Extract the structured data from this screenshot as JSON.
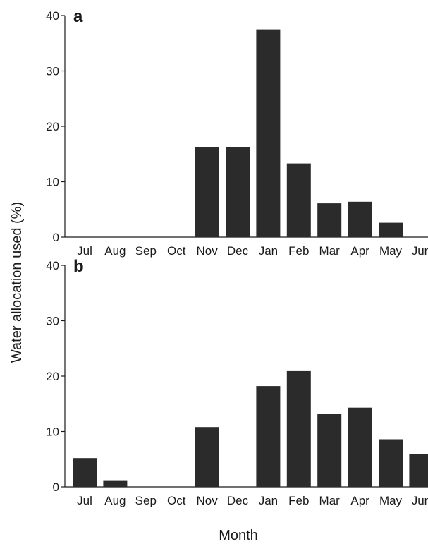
{
  "figure": {
    "ylabel": "Water allocation used (%)",
    "xlabel": "Month"
  },
  "colors": {
    "bar": "#2b2b2b",
    "axis": "#1a1a1a",
    "background": "#ffffff"
  },
  "chart_data": [
    {
      "type": "bar",
      "panel": "a",
      "categories": [
        "Jul",
        "Aug",
        "Sep",
        "Oct",
        "Nov",
        "Dec",
        "Jan",
        "Feb",
        "Mar",
        "Apr",
        "May",
        "Jun"
      ],
      "values": [
        0,
        0,
        0,
        0,
        16.3,
        16.3,
        37.5,
        13.3,
        6.1,
        6.4,
        2.6,
        0
      ],
      "yticks": [
        0,
        10,
        20,
        30,
        40
      ],
      "ylim": [
        0,
        40
      ],
      "xlabel": "",
      "ylabel": "Water allocation used (%)",
      "grid": false
    },
    {
      "type": "bar",
      "panel": "b",
      "categories": [
        "Jul",
        "Aug",
        "Sep",
        "Oct",
        "Nov",
        "Dec",
        "Jan",
        "Feb",
        "Mar",
        "Apr",
        "May",
        "Jun"
      ],
      "values": [
        5.2,
        1.2,
        0,
        0,
        10.8,
        0,
        18.2,
        20.9,
        13.2,
        14.3,
        8.6,
        5.9
      ],
      "yticks": [
        0,
        10,
        20,
        30,
        40
      ],
      "ylim": [
        0,
        40
      ],
      "xlabel": "Month",
      "ylabel": "Water allocation used (%)",
      "grid": false
    }
  ]
}
